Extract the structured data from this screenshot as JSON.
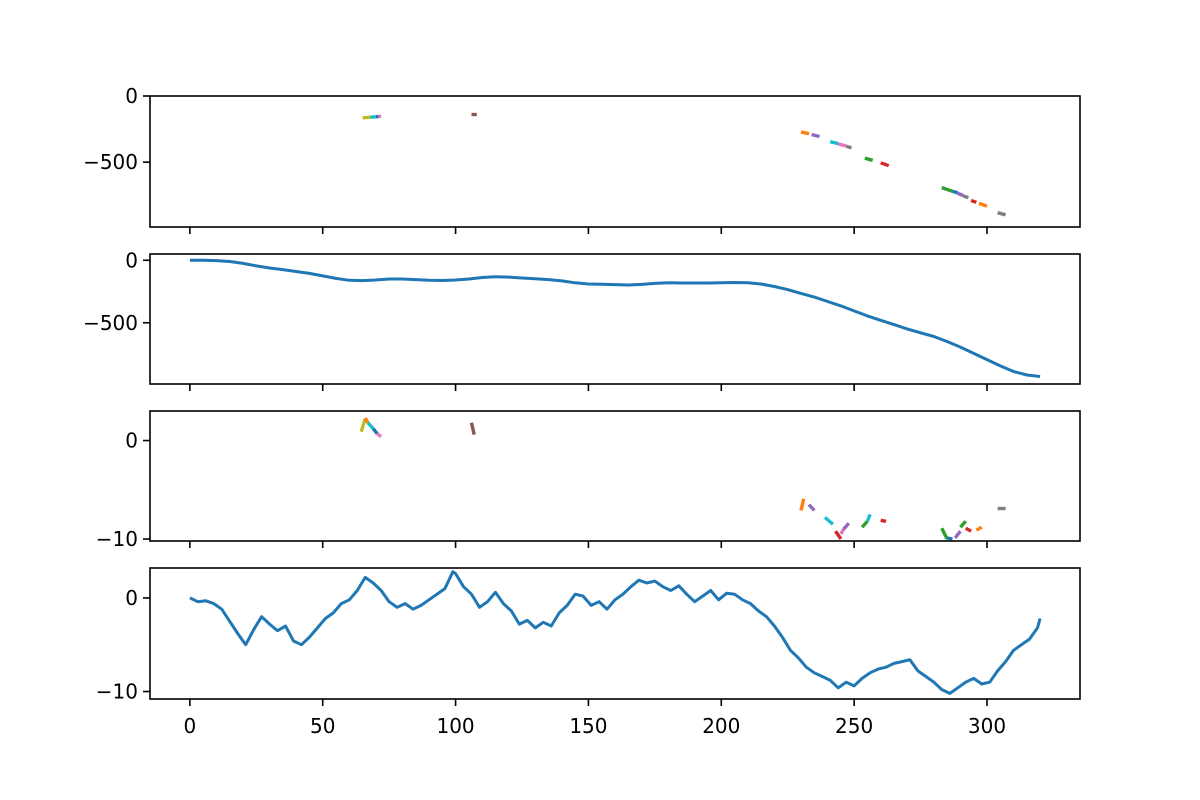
{
  "chart_data": [
    {
      "type": "line",
      "panel": 1,
      "title": "",
      "xlabel": "",
      "ylabel": "",
      "xlim": [
        -15,
        335
      ],
      "ylim": [
        -990,
        0
      ],
      "x_ticks": [
        0,
        50,
        100,
        150,
        200,
        250,
        300
      ],
      "x_tick_labels_visible": false,
      "y_ticks": [
        0,
        -500
      ],
      "y_tick_labels": [
        "0",
        "−500"
      ],
      "grid": false,
      "series": [
        {
          "color": "#bcbd22",
          "x": [
            65,
            68
          ],
          "y": [
            -165,
            -160
          ]
        },
        {
          "color": "#17becf",
          "x": [
            68,
            70
          ],
          "y": [
            -160,
            -157
          ]
        },
        {
          "color": "#1f77b4",
          "x": [
            70,
            71
          ],
          "y": [
            -157,
            -155
          ]
        },
        {
          "color": "#e377c2",
          "x": [
            71,
            72
          ],
          "y": [
            -155,
            -153
          ]
        },
        {
          "color": "#8c564b",
          "x": [
            106,
            108
          ],
          "y": [
            -140,
            -140
          ]
        },
        {
          "color": "#ff7f0e",
          "x": [
            230,
            233
          ],
          "y": [
            -272,
            -285
          ]
        },
        {
          "color": "#9467bd",
          "x": [
            234,
            237
          ],
          "y": [
            -292,
            -306
          ]
        },
        {
          "color": "#17becf",
          "x": [
            241,
            244
          ],
          "y": [
            -345,
            -360
          ]
        },
        {
          "color": "#e377c2",
          "x": [
            244,
            247
          ],
          "y": [
            -362,
            -378
          ]
        },
        {
          "color": "#7f7f7f",
          "x": [
            247,
            249
          ],
          "y": [
            -380,
            -392
          ]
        },
        {
          "color": "#2ca02c",
          "x": [
            254,
            257
          ],
          "y": [
            -470,
            -486
          ]
        },
        {
          "color": "#d62728",
          "x": [
            260,
            263
          ],
          "y": [
            -505,
            -527
          ]
        },
        {
          "color": "#2ca02c",
          "x": [
            283,
            287
          ],
          "y": [
            -692,
            -720
          ]
        },
        {
          "color": "#1f77b4",
          "x": [
            287,
            289
          ],
          "y": [
            -720,
            -732
          ]
        },
        {
          "color": "#9467bd",
          "x": [
            289,
            291
          ],
          "y": [
            -735,
            -752
          ]
        },
        {
          "color": "#7f7f7f",
          "x": [
            291,
            293
          ],
          "y": [
            -755,
            -768
          ]
        },
        {
          "color": "#d62728",
          "x": [
            294,
            296
          ],
          "y": [
            -790,
            -803
          ]
        },
        {
          "color": "#ff7f0e",
          "x": [
            297,
            300
          ],
          "y": [
            -812,
            -832
          ]
        },
        {
          "color": "#7f7f7f",
          "x": [
            304,
            307
          ],
          "y": [
            -882,
            -898
          ]
        }
      ]
    },
    {
      "type": "line",
      "panel": 2,
      "title": "",
      "xlabel": "",
      "ylabel": "",
      "xlim": [
        -15,
        335
      ],
      "ylim": [
        -990,
        50
      ],
      "x_ticks": [
        0,
        50,
        100,
        150,
        200,
        250,
        300
      ],
      "x_tick_labels_visible": false,
      "y_ticks": [
        0,
        -500
      ],
      "y_tick_labels": [
        "0",
        "−500"
      ],
      "grid": false,
      "series": [
        {
          "color": "#1f77b4",
          "x": [
            0,
            5,
            10,
            15,
            20,
            25,
            30,
            35,
            40,
            45,
            50,
            55,
            60,
            65,
            70,
            75,
            80,
            85,
            90,
            95,
            100,
            105,
            110,
            115,
            120,
            125,
            130,
            135,
            140,
            145,
            150,
            155,
            160,
            165,
            170,
            175,
            180,
            185,
            190,
            195,
            200,
            205,
            210,
            215,
            220,
            225,
            230,
            235,
            240,
            245,
            250,
            255,
            260,
            265,
            270,
            275,
            280,
            285,
            290,
            295,
            300,
            305,
            310,
            315,
            320
          ],
          "y": [
            0,
            0,
            -3,
            -10,
            -25,
            -45,
            -62,
            -75,
            -90,
            -105,
            -125,
            -145,
            -160,
            -163,
            -158,
            -150,
            -150,
            -155,
            -160,
            -162,
            -158,
            -150,
            -138,
            -132,
            -135,
            -142,
            -148,
            -155,
            -165,
            -180,
            -190,
            -192,
            -195,
            -198,
            -193,
            -185,
            -180,
            -182,
            -182,
            -182,
            -180,
            -178,
            -180,
            -190,
            -210,
            -235,
            -265,
            -295,
            -330,
            -365,
            -405,
            -445,
            -480,
            -515,
            -550,
            -580,
            -610,
            -650,
            -695,
            -745,
            -795,
            -845,
            -890,
            -918,
            -930
          ]
        }
      ]
    },
    {
      "type": "line",
      "panel": 3,
      "title": "",
      "xlabel": "",
      "ylabel": "",
      "xlim": [
        -15,
        335
      ],
      "ylim": [
        -10.2,
        3
      ],
      "x_ticks": [
        0,
        50,
        100,
        150,
        200,
        250,
        300
      ],
      "x_tick_labels_visible": false,
      "y_ticks": [
        0,
        -10
      ],
      "y_tick_labels": [
        "0",
        "−10"
      ],
      "grid": false,
      "series": [
        {
          "color": "#bcbd22",
          "x": [
            64.5,
            66
          ],
          "y": [
            0.9,
            2.2
          ]
        },
        {
          "color": "#ff7f0e",
          "x": [
            66,
            67
          ],
          "y": [
            2.3,
            1.8
          ]
        },
        {
          "color": "#17becf",
          "x": [
            67,
            69
          ],
          "y": [
            1.8,
            1.2
          ]
        },
        {
          "color": "#1f77b4",
          "x": [
            69,
            70.5
          ],
          "y": [
            1.2,
            0.7
          ]
        },
        {
          "color": "#e377c2",
          "x": [
            70.5,
            72
          ],
          "y": [
            0.7,
            0.4
          ]
        },
        {
          "color": "#8c564b",
          "x": [
            106,
            107
          ],
          "y": [
            1.8,
            0.6
          ]
        },
        {
          "color": "#ff7f0e",
          "x": [
            230,
            231
          ],
          "y": [
            -7.1,
            -5.9
          ]
        },
        {
          "color": "#9467bd",
          "x": [
            233,
            235
          ],
          "y": [
            -6.5,
            -7.1
          ]
        },
        {
          "color": "#17becf",
          "x": [
            239,
            242
          ],
          "y": [
            -7.8,
            -8.5
          ]
        },
        {
          "color": "#d62728",
          "x": [
            243,
            245
          ],
          "y": [
            -9.2,
            -10
          ]
        },
        {
          "color": "#e377c2",
          "x": [
            245,
            246
          ],
          "y": [
            -9.5,
            -9.0
          ]
        },
        {
          "color": "#9467bd",
          "x": [
            246,
            248
          ],
          "y": [
            -9.0,
            -8.4
          ]
        },
        {
          "color": "#2ca02c",
          "x": [
            253,
            255
          ],
          "y": [
            -8.8,
            -8.2
          ]
        },
        {
          "color": "#17becf",
          "x": [
            255,
            256
          ],
          "y": [
            -8.2,
            -7.5
          ]
        },
        {
          "color": "#d62728",
          "x": [
            260,
            262
          ],
          "y": [
            -8.1,
            -8.2
          ]
        },
        {
          "color": "#2ca02c",
          "x": [
            283,
            285
          ],
          "y": [
            -8.9,
            -10
          ]
        },
        {
          "color": "#1f77b4",
          "x": [
            285,
            287
          ],
          "y": [
            -9.9,
            -10
          ]
        },
        {
          "color": "#9467bd",
          "x": [
            288,
            290
          ],
          "y": [
            -9.9,
            -9.2
          ]
        },
        {
          "color": "#2ca02c",
          "x": [
            290,
            292
          ],
          "y": [
            -8.8,
            -8.2
          ]
        },
        {
          "color": "#d62728",
          "x": [
            292,
            294
          ],
          "y": [
            -8.9,
            -9.2
          ]
        },
        {
          "color": "#ff7f0e",
          "x": [
            296,
            298
          ],
          "y": [
            -9.1,
            -8.8
          ]
        },
        {
          "color": "#7f7f7f",
          "x": [
            304,
            307
          ],
          "y": [
            -6.9,
            -6.9
          ]
        }
      ]
    },
    {
      "type": "line",
      "panel": 4,
      "title": "",
      "xlabel": "",
      "ylabel": "",
      "xlim": [
        -15,
        335
      ],
      "ylim": [
        -10.8,
        3.2
      ],
      "x_ticks": [
        0,
        50,
        100,
        150,
        200,
        250,
        300
      ],
      "x_tick_labels": [
        "0",
        "50",
        "100",
        "150",
        "200",
        "250",
        "300"
      ],
      "x_tick_labels_visible": true,
      "y_ticks": [
        0,
        -10
      ],
      "y_tick_labels": [
        "0",
        "−10"
      ],
      "grid": false,
      "series": [
        {
          "color": "#1f77b4",
          "x": [
            0,
            3,
            6,
            9,
            12,
            15,
            18,
            21,
            24,
            27,
            30,
            33,
            36,
            39,
            42,
            45,
            48,
            51,
            54,
            57,
            60,
            63,
            66,
            69,
            72,
            75,
            78,
            81,
            84,
            87,
            90,
            93,
            96,
            99,
            100,
            103,
            106,
            109,
            112,
            115,
            118,
            121,
            124,
            127,
            130,
            133,
            136,
            139,
            142,
            145,
            148,
            151,
            154,
            157,
            160,
            163,
            166,
            169,
            172,
            175,
            178,
            181,
            184,
            187,
            190,
            193,
            196,
            199,
            202,
            205,
            208,
            211,
            214,
            217,
            220,
            223,
            226,
            229,
            232,
            235,
            238,
            241,
            244,
            247,
            250,
            253,
            256,
            259,
            262,
            265,
            268,
            271,
            274,
            277,
            280,
            283,
            286,
            289,
            292,
            295,
            298,
            301,
            304,
            307,
            310,
            313,
            316,
            319,
            320
          ],
          "y": [
            0,
            -0.4,
            -0.3,
            -0.6,
            -1.2,
            -2.5,
            -3.8,
            -5.0,
            -3.4,
            -2.0,
            -2.8,
            -3.5,
            -3.0,
            -4.6,
            -5.0,
            -4.2,
            -3.2,
            -2.2,
            -1.6,
            -0.6,
            -0.2,
            0.8,
            2.2,
            1.6,
            0.8,
            -0.4,
            -1.0,
            -0.6,
            -1.2,
            -0.8,
            -0.2,
            0.4,
            1.0,
            2.8,
            2.6,
            1.2,
            0.4,
            -1.0,
            -0.4,
            0.6,
            -0.6,
            -1.4,
            -2.8,
            -2.4,
            -3.2,
            -2.6,
            -3.0,
            -1.6,
            -0.8,
            0.4,
            0.2,
            -0.8,
            -0.4,
            -1.2,
            -0.2,
            0.4,
            1.2,
            1.9,
            1.6,
            1.8,
            1.2,
            0.8,
            1.3,
            0.4,
            -0.4,
            0.2,
            0.8,
            -0.2,
            0.5,
            0.4,
            -0.2,
            -0.6,
            -1.4,
            -2.0,
            -3.0,
            -4.2,
            -5.6,
            -6.4,
            -7.4,
            -8.0,
            -8.4,
            -8.8,
            -9.6,
            -9.0,
            -9.4,
            -8.6,
            -8.0,
            -7.6,
            -7.4,
            -7.0,
            -6.8,
            -6.6,
            -7.8,
            -8.4,
            -9.0,
            -9.8,
            -10.2,
            -9.6,
            -9.0,
            -8.6,
            -9.2,
            -9.0,
            -7.8,
            -6.8,
            -5.6,
            -5.0,
            -4.4,
            -3.2,
            -2.2
          ]
        }
      ]
    }
  ]
}
